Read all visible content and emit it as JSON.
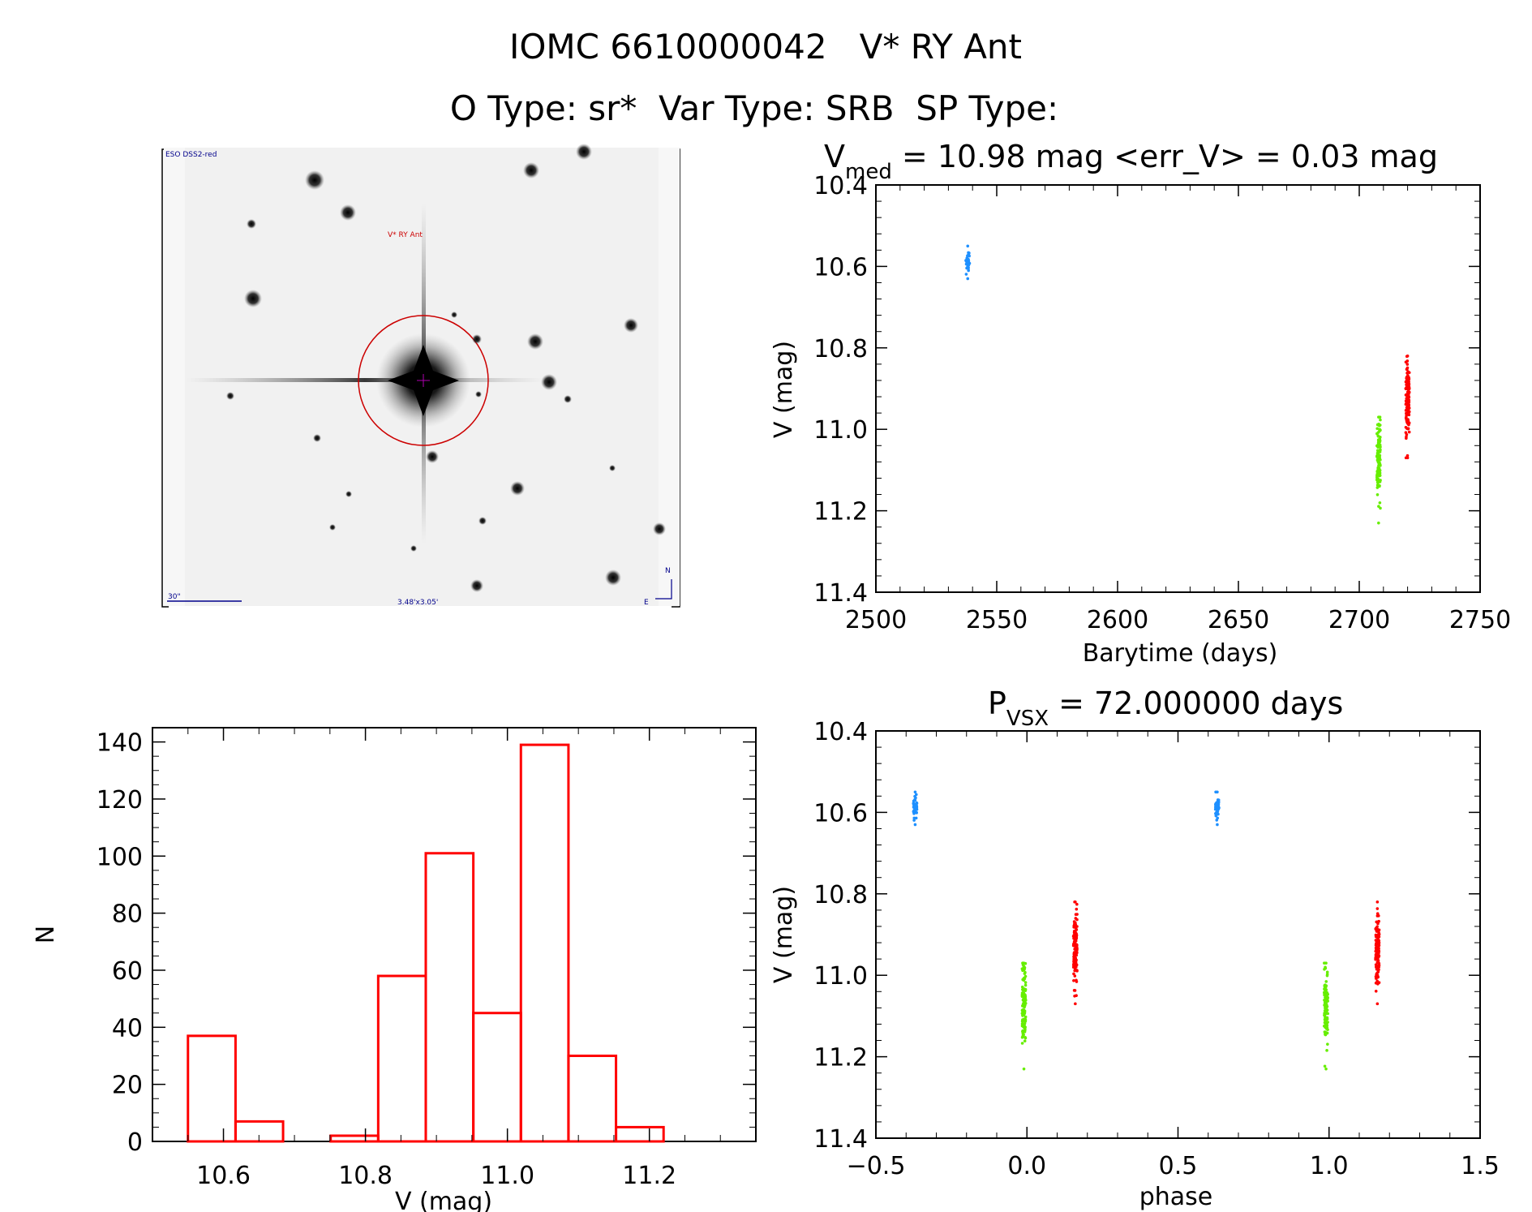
{
  "header": {
    "title_line1": "IOMC 6610000042   V* RY Ant",
    "title_line2": "O Type: sr*  Var Type: SRB  SP Type:"
  },
  "finder": {
    "survey_label": "ESO DSS2-red",
    "target_label": "V* RY Ant",
    "scale_label": "30\"",
    "fov_label": "3.48'x3.05'",
    "compass_n": "N",
    "compass_e": "E"
  },
  "colors": {
    "blue": "#1e90ff",
    "green": "#66ee00",
    "red": "#ff0000",
    "hist": "#ff0000",
    "circle": "#cc0000"
  },
  "chart_data": [
    {
      "type": "scatter",
      "title_main": "V",
      "title_sub": "med",
      "title_rest": " = 10.98 mag <err_V> = 0.03 mag",
      "xlabel": "Barytime (days)",
      "ylabel": "V (mag)",
      "xlim": [
        2500,
        2750
      ],
      "ylim": [
        11.4,
        10.4
      ],
      "xticks": [
        2500,
        2550,
        2600,
        2650,
        2700,
        2750
      ],
      "yticks": [
        10.4,
        10.6,
        10.8,
        11.0,
        11.2,
        11.4
      ],
      "series": [
        {
          "color": "blue",
          "x": 2538,
          "y_min": 10.55,
          "y_max": 10.63,
          "y_center": 10.59
        },
        {
          "color": "green",
          "x": 2708,
          "y_min": 10.97,
          "y_max": 11.23,
          "y_center": 11.07
        },
        {
          "color": "red",
          "x": 2720,
          "y_min": 10.82,
          "y_max": 11.07,
          "y_center": 10.93
        }
      ]
    },
    {
      "type": "bar",
      "xlabel": "V (mag)",
      "ylabel": "N",
      "xlim": [
        10.5,
        11.35
      ],
      "ylim": [
        0,
        145
      ],
      "xticks": [
        10.6,
        10.8,
        11.0,
        11.2
      ],
      "yticks": [
        0,
        20,
        40,
        60,
        80,
        100,
        120,
        140
      ],
      "bin_edges": [
        10.55,
        10.617,
        10.684,
        10.751,
        10.818,
        10.885,
        10.952,
        11.019,
        11.086,
        11.153,
        11.22
      ],
      "values": [
        37,
        7,
        0,
        2,
        58,
        101,
        45,
        139,
        30,
        5
      ]
    },
    {
      "type": "scatter",
      "title_main": "P",
      "title_sub": "VSX",
      "title_rest": " = 72.000000 days",
      "xlabel": "phase",
      "ylabel": "V (mag)",
      "xlim": [
        -0.5,
        1.5
      ],
      "ylim": [
        11.4,
        10.4
      ],
      "xticks": [
        -0.5,
        0.0,
        0.5,
        1.0,
        1.5
      ],
      "xtick_labels": [
        "−0.5",
        "0.0",
        "0.5",
        "1.0",
        "1.5"
      ],
      "yticks": [
        10.4,
        10.6,
        10.8,
        11.0,
        11.2,
        11.4
      ],
      "series": [
        {
          "color": "blue",
          "x": -0.37,
          "y_min": 10.55,
          "y_max": 10.63,
          "y_center": 10.59
        },
        {
          "color": "blue",
          "x": 0.63,
          "y_min": 10.55,
          "y_max": 10.63,
          "y_center": 10.59
        },
        {
          "color": "green",
          "x": -0.01,
          "y_min": 10.97,
          "y_max": 11.23,
          "y_center": 11.07
        },
        {
          "color": "green",
          "x": 0.99,
          "y_min": 10.97,
          "y_max": 11.23,
          "y_center": 11.07
        },
        {
          "color": "red",
          "x": 0.16,
          "y_min": 10.82,
          "y_max": 11.07,
          "y_center": 10.93
        },
        {
          "color": "red",
          "x": 1.16,
          "y_min": 10.82,
          "y_max": 11.07,
          "y_center": 10.93
        }
      ]
    }
  ]
}
